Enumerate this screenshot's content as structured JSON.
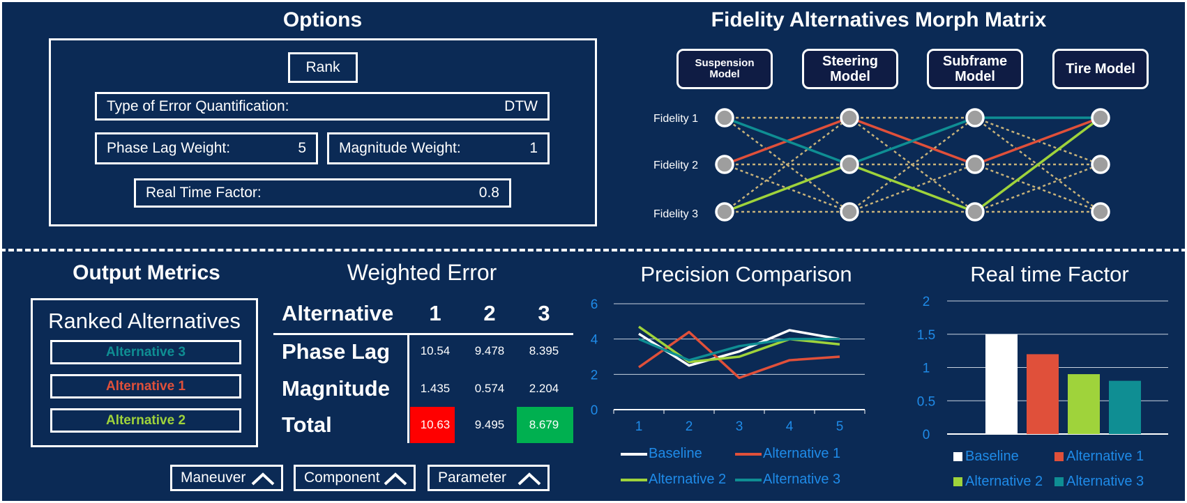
{
  "options": {
    "title": "Options",
    "rank_label": "Rank",
    "error_type": {
      "label": "Type of Error Quantification:",
      "value": "DTW"
    },
    "phase_lag_weight": {
      "label": "Phase Lag Weight:",
      "value": "5"
    },
    "magnitude_weight": {
      "label": "Magnitude Weight:",
      "value": "1"
    },
    "real_time_factor": {
      "label": "Real Time Factor:",
      "value": "0.8"
    }
  },
  "morph": {
    "title": "Fidelity Alternatives Morph Matrix",
    "components": [
      "Suspension Model",
      "Steering Model",
      "Subframe Model",
      "Tire Model"
    ],
    "fidelities": [
      "Fidelity 1",
      "Fidelity 2",
      "Fidelity 3"
    ],
    "paths": [
      {
        "name": "Alternative 1",
        "color": "#e0503a",
        "levels": [
          2,
          1,
          2,
          1
        ]
      },
      {
        "name": "Alternative 2",
        "color": "#9fd33b",
        "levels": [
          3,
          2,
          3,
          1
        ]
      },
      {
        "name": "Alternative 3",
        "color": "#0f8e93",
        "levels": [
          1,
          2,
          1,
          1
        ]
      }
    ]
  },
  "output": {
    "title": "Output Metrics",
    "ranked_title": "Ranked Alternatives",
    "ranked": [
      {
        "label": "Alternative 3",
        "color": "#0f8e93"
      },
      {
        "label": "Alternative 1",
        "color": "#e0503a"
      },
      {
        "label": "Alternative 2",
        "color": "#9fd33b"
      }
    ]
  },
  "weighted_error": {
    "title": "Weighted Error",
    "header": [
      "Alternative",
      "1",
      "2",
      "3"
    ],
    "rows": [
      {
        "label": "Phase Lag",
        "values": [
          "10.54",
          "9.478",
          "8.395"
        ]
      },
      {
        "label": "Magnitude",
        "values": [
          "1.435",
          "0.574",
          "2.204"
        ]
      },
      {
        "label": "Total",
        "values": [
          "10.63",
          "9.495",
          "8.679"
        ]
      }
    ],
    "highlight": {
      "worst": "#ff0000",
      "best": "#00b050"
    }
  },
  "buttons": [
    "Maneuver",
    "Component",
    "Parameter"
  ],
  "chart_data": [
    {
      "type": "line",
      "title": "Precision Comparison",
      "x": [
        1,
        2,
        3,
        4,
        5
      ],
      "ylim": [
        0,
        6
      ],
      "yticks": [
        0,
        2,
        4,
        6
      ],
      "series": [
        {
          "name": "Baseline",
          "color": "#ffffff",
          "values": [
            4.3,
            2.5,
            3.3,
            4.5,
            4.0
          ]
        },
        {
          "name": "Alternative 1",
          "color": "#e0503a",
          "values": [
            2.4,
            4.4,
            1.8,
            2.8,
            3.0
          ]
        },
        {
          "name": "Alternative 2",
          "color": "#9fd33b",
          "values": [
            4.7,
            2.7,
            3.0,
            4.0,
            3.7
          ]
        },
        {
          "name": "Alternative 3",
          "color": "#0f8e93",
          "values": [
            4.0,
            2.8,
            3.6,
            4.0,
            4.0
          ]
        }
      ],
      "legend": "bottom"
    },
    {
      "type": "bar",
      "title": "Real time Factor",
      "categories": [
        "Baseline",
        "Alternative 1",
        "Alternative 2",
        "Alternative 3"
      ],
      "values": [
        1.5,
        1.2,
        0.9,
        0.8
      ],
      "colors": [
        "#ffffff",
        "#e0503a",
        "#9fd33b",
        "#0f8e93"
      ],
      "ylim": [
        0,
        2
      ],
      "yticks": [
        "0",
        "0.5",
        "1",
        "1.5",
        "2"
      ],
      "legend": "bottom"
    }
  ]
}
